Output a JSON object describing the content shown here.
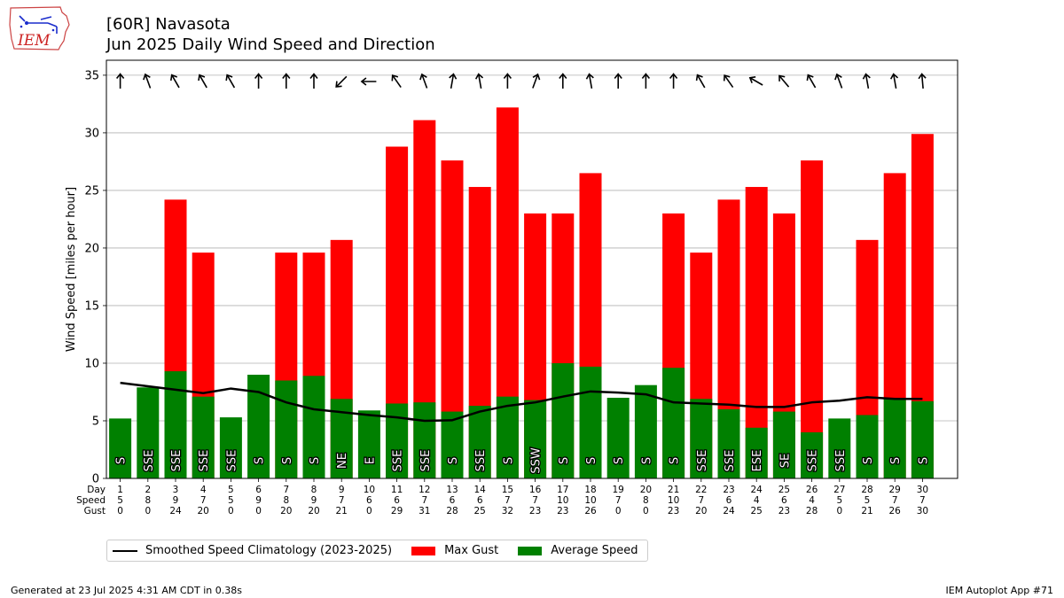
{
  "logo": {
    "text": "IEM",
    "icon": "iowa-state-outline-icon"
  },
  "footer": {
    "generated": "Generated at 23 Jul 2025 4:31 AM CDT in 0.38s",
    "app": "IEM Autoplot App #71"
  },
  "colors": {
    "gust": "#ff0000",
    "avg": "#008000",
    "clim": "#000000"
  },
  "chart_data": {
    "type": "bar",
    "title": "[60R] Navasota",
    "subtitle": "Jun 2025 Daily Wind Speed and Direction",
    "xlabel": "",
    "ylabel": "Wind Speed [miles per hour]",
    "ylim": [
      0,
      36.3
    ],
    "yticks": [
      0,
      5,
      10,
      15,
      20,
      25,
      30,
      35
    ],
    "grid": true,
    "legend_position": "bottom",
    "table_row_labels": [
      "Day",
      "Speed",
      "Gust"
    ],
    "days": [
      1,
      2,
      3,
      4,
      5,
      6,
      7,
      8,
      9,
      10,
      11,
      12,
      13,
      14,
      15,
      16,
      17,
      18,
      19,
      20,
      21,
      22,
      23,
      24,
      25,
      26,
      27,
      28,
      29,
      30
    ],
    "avg_speed_label": [
      5,
      8,
      9,
      7,
      5,
      9,
      8,
      9,
      7,
      6,
      6,
      7,
      6,
      6,
      7,
      7,
      10,
      10,
      7,
      8,
      10,
      7,
      6,
      4,
      6,
      4,
      5,
      5,
      7,
      7
    ],
    "gust_label": [
      0,
      0,
      24,
      20,
      0,
      0,
      20,
      20,
      21,
      0,
      29,
      31,
      28,
      25,
      32,
      23,
      23,
      26,
      0,
      0,
      23,
      20,
      24,
      25,
      23,
      28,
      0,
      21,
      26,
      30
    ],
    "direction_text": [
      "S",
      "SSE",
      "SSE",
      "SSE",
      "SSE",
      "S",
      "S",
      "S",
      "NE",
      "E",
      "SSE",
      "SSE",
      "S",
      "SSE",
      "S",
      "SSW",
      "S",
      "S",
      "S",
      "S",
      "S",
      "SSE",
      "SSE",
      "ESE",
      "SE",
      "SSE",
      "SSE",
      "S",
      "S",
      "S"
    ],
    "direction_deg": [
      180,
      160,
      150,
      150,
      150,
      180,
      180,
      180,
      45,
      90,
      145,
      160,
      190,
      170,
      180,
      200,
      180,
      170,
      180,
      180,
      180,
      150,
      145,
      120,
      140,
      150,
      160,
      170,
      170,
      175
    ],
    "series": [
      {
        "name": "Max Gust",
        "values": [
          0,
          0,
          24.2,
          19.6,
          0,
          0,
          19.6,
          19.6,
          20.7,
          0,
          28.8,
          31.1,
          27.6,
          25.3,
          32.2,
          23.0,
          23.0,
          26.5,
          0,
          0,
          23.0,
          19.6,
          24.2,
          25.3,
          23.0,
          27.6,
          0,
          20.7,
          26.5,
          29.9
        ]
      },
      {
        "name": "Average Speed",
        "values": [
          5.2,
          7.9,
          9.3,
          7.1,
          5.3,
          9.0,
          8.5,
          8.9,
          6.9,
          5.9,
          6.5,
          6.6,
          5.8,
          6.3,
          7.1,
          6.8,
          10.0,
          9.7,
          7.0,
          8.1,
          9.6,
          6.9,
          6.0,
          4.4,
          5.8,
          4.0,
          5.2,
          5.5,
          6.9,
          6.7
        ]
      },
      {
        "name": "Smoothed Speed Climatology (2023-2025)",
        "values": [
          8.3,
          8.0,
          7.7,
          7.4,
          7.8,
          7.5,
          6.6,
          6.0,
          5.75,
          5.5,
          5.3,
          5.0,
          5.05,
          5.8,
          6.3,
          6.6,
          7.1,
          7.55,
          7.45,
          7.3,
          6.6,
          6.5,
          6.4,
          6.2,
          6.2,
          6.6,
          6.75,
          7.05,
          6.9,
          6.9
        ]
      }
    ]
  }
}
